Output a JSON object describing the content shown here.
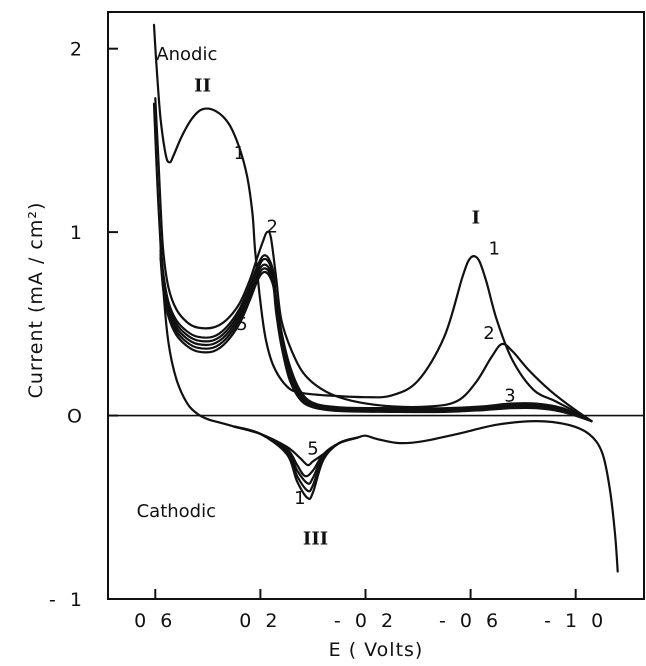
{
  "chart_data": {
    "type": "line",
    "xlabel": "E ( Volts)",
    "ylabel": "Current (mA / cm²)",
    "xlim": [
      0.78,
      -1.26
    ],
    "ylim": [
      -1.0,
      2.2
    ],
    "x_ticks": [
      {
        "value": 0.6,
        "label": "0 6"
      },
      {
        "value": 0.2,
        "label": "0 2"
      },
      {
        "value": -0.2,
        "label": "- 0 2"
      },
      {
        "value": -0.6,
        "label": "- 0 6"
      },
      {
        "value": -1.0,
        "label": "- 1 0"
      }
    ],
    "y_ticks": [
      {
        "value": 2,
        "label": "2"
      },
      {
        "value": 1,
        "label": "1"
      },
      {
        "value": 0,
        "label": "O"
      },
      {
        "value": -1,
        "label": "- 1"
      }
    ],
    "zero_line": true,
    "annotations": [
      {
        "text": "Anodic",
        "x": 0.48,
        "y": 1.97
      },
      {
        "text": "Cathodic",
        "x": 0.52,
        "y": -0.52
      },
      {
        "text": "II",
        "x": 0.42,
        "y": 1.8,
        "roman": true
      },
      {
        "text": "I",
        "x": -0.62,
        "y": 1.08,
        "roman": true
      },
      {
        "text": "III",
        "x": -0.01,
        "y": -0.67,
        "roman": true
      },
      {
        "text": "1",
        "x": 0.28,
        "y": 1.43
      },
      {
        "text": "2",
        "x": 0.155,
        "y": 1.03
      },
      {
        "text": "5",
        "x": 0.27,
        "y": 0.5
      },
      {
        "text": "1",
        "x": -0.69,
        "y": 0.91
      },
      {
        "text": "2",
        "x": -0.67,
        "y": 0.45
      },
      {
        "text": "3",
        "x": -0.75,
        "y": 0.11
      },
      {
        "text": "5",
        "x": 0.0,
        "y": -0.18
      },
      {
        "text": "1",
        "x": 0.05,
        "y": -0.45
      }
    ],
    "series": [
      {
        "values": [
          [
            0.605,
            2.13
          ],
          [
            0.595,
            1.9
          ],
          [
            0.58,
            1.62
          ],
          [
            0.56,
            1.42
          ],
          [
            0.545,
            1.38
          ],
          [
            0.53,
            1.42
          ],
          [
            0.5,
            1.52
          ],
          [
            0.46,
            1.62
          ],
          [
            0.42,
            1.67
          ],
          [
            0.37,
            1.66
          ],
          [
            0.32,
            1.59
          ],
          [
            0.28,
            1.46
          ],
          [
            0.25,
            1.3
          ],
          [
            0.23,
            1.1
          ],
          [
            0.22,
            0.9
          ],
          [
            0.2,
            0.62
          ],
          [
            0.18,
            0.42
          ],
          [
            0.15,
            0.27
          ],
          [
            0.1,
            0.16
          ],
          [
            0.05,
            0.125
          ],
          [
            -0.05,
            0.11
          ],
          [
            -0.2,
            0.1
          ],
          [
            -0.3,
            0.11
          ],
          [
            -0.4,
            0.19
          ],
          [
            -0.5,
            0.43
          ],
          [
            -0.57,
            0.76
          ],
          [
            -0.6,
            0.86
          ],
          [
            -0.63,
            0.85
          ],
          [
            -0.66,
            0.73
          ],
          [
            -0.7,
            0.52
          ],
          [
            -0.76,
            0.3
          ],
          [
            -0.84,
            0.14
          ],
          [
            -0.92,
            0.08
          ],
          [
            -1.0,
            0.02
          ],
          [
            -1.06,
            -0.03
          ]
        ]
      },
      {
        "values": [
          [
            0.6,
            1.73
          ],
          [
            0.59,
            1.45
          ],
          [
            0.58,
            1.15
          ],
          [
            0.57,
            0.9
          ],
          [
            0.55,
            0.7
          ],
          [
            0.52,
            0.58
          ],
          [
            0.48,
            0.51
          ],
          [
            0.44,
            0.48
          ],
          [
            0.38,
            0.48
          ],
          [
            0.33,
            0.52
          ],
          [
            0.28,
            0.61
          ],
          [
            0.24,
            0.74
          ],
          [
            0.21,
            0.87
          ],
          [
            0.19,
            0.95
          ],
          [
            0.175,
            1.0
          ],
          [
            0.16,
            0.97
          ],
          [
            0.14,
            0.75
          ],
          [
            0.12,
            0.52
          ],
          [
            0.08,
            0.35
          ],
          [
            0.03,
            0.22
          ],
          [
            -0.05,
            0.13
          ],
          [
            -0.15,
            0.08
          ],
          [
            -0.3,
            0.05
          ],
          [
            -0.45,
            0.05
          ],
          [
            -0.55,
            0.08
          ],
          [
            -0.62,
            0.18
          ],
          [
            -0.68,
            0.32
          ],
          [
            -0.72,
            0.39
          ],
          [
            -0.76,
            0.35
          ],
          [
            -0.82,
            0.25
          ],
          [
            -0.9,
            0.14
          ],
          [
            -0.98,
            0.05
          ],
          [
            -1.06,
            -0.03
          ]
        ]
      },
      {
        "values": [
          [
            0.58,
            0.95
          ],
          [
            0.57,
            0.78
          ],
          [
            0.55,
            0.62
          ],
          [
            0.52,
            0.52
          ],
          [
            0.48,
            0.46
          ],
          [
            0.44,
            0.43
          ],
          [
            0.38,
            0.43
          ],
          [
            0.33,
            0.48
          ],
          [
            0.28,
            0.58
          ],
          [
            0.24,
            0.71
          ],
          [
            0.21,
            0.82
          ],
          [
            0.19,
            0.87
          ],
          [
            0.17,
            0.86
          ],
          [
            0.15,
            0.78
          ],
          [
            0.14,
            0.64
          ],
          [
            0.12,
            0.46
          ],
          [
            0.09,
            0.28
          ],
          [
            0.05,
            0.14
          ],
          [
            0.0,
            0.07
          ],
          [
            -0.1,
            0.045
          ],
          [
            -0.3,
            0.04
          ],
          [
            -0.5,
            0.04
          ],
          [
            -0.65,
            0.05
          ],
          [
            -0.75,
            0.065
          ],
          [
            -0.85,
            0.065
          ],
          [
            -0.95,
            0.04
          ],
          [
            -1.06,
            -0.03
          ]
        ]
      },
      {
        "values": [
          [
            0.58,
            0.93
          ],
          [
            0.57,
            0.76
          ],
          [
            0.55,
            0.6
          ],
          [
            0.52,
            0.5
          ],
          [
            0.48,
            0.44
          ],
          [
            0.44,
            0.41
          ],
          [
            0.38,
            0.41
          ],
          [
            0.33,
            0.46
          ],
          [
            0.28,
            0.56
          ],
          [
            0.24,
            0.69
          ],
          [
            0.21,
            0.8
          ],
          [
            0.19,
            0.85
          ],
          [
            0.17,
            0.84
          ],
          [
            0.15,
            0.76
          ],
          [
            0.14,
            0.62
          ],
          [
            0.12,
            0.44
          ],
          [
            0.09,
            0.26
          ],
          [
            0.05,
            0.12
          ],
          [
            0.0,
            0.06
          ],
          [
            -0.1,
            0.04
          ],
          [
            -0.3,
            0.035
          ],
          [
            -0.5,
            0.035
          ],
          [
            -0.65,
            0.045
          ],
          [
            -0.75,
            0.058
          ],
          [
            -0.85,
            0.058
          ],
          [
            -0.95,
            0.035
          ],
          [
            -1.06,
            -0.03
          ]
        ]
      },
      {
        "values": [
          [
            0.58,
            0.9
          ],
          [
            0.57,
            0.73
          ],
          [
            0.55,
            0.58
          ],
          [
            0.52,
            0.48
          ],
          [
            0.48,
            0.42
          ],
          [
            0.44,
            0.39
          ],
          [
            0.38,
            0.39
          ],
          [
            0.33,
            0.44
          ],
          [
            0.28,
            0.54
          ],
          [
            0.24,
            0.67
          ],
          [
            0.21,
            0.78
          ],
          [
            0.19,
            0.82
          ],
          [
            0.17,
            0.81
          ],
          [
            0.15,
            0.74
          ],
          [
            0.14,
            0.6
          ],
          [
            0.12,
            0.42
          ],
          [
            0.09,
            0.24
          ],
          [
            0.05,
            0.11
          ],
          [
            0.0,
            0.055
          ],
          [
            -0.1,
            0.035
          ],
          [
            -0.3,
            0.03
          ],
          [
            -0.5,
            0.03
          ],
          [
            -0.65,
            0.04
          ],
          [
            -0.75,
            0.052
          ],
          [
            -0.85,
            0.052
          ],
          [
            -0.95,
            0.03
          ],
          [
            -1.06,
            -0.03
          ]
        ]
      },
      {
        "values": [
          [
            0.58,
            0.88
          ],
          [
            0.57,
            0.71
          ],
          [
            0.55,
            0.56
          ],
          [
            0.52,
            0.46
          ],
          [
            0.48,
            0.4
          ],
          [
            0.44,
            0.37
          ],
          [
            0.38,
            0.37
          ],
          [
            0.33,
            0.42
          ],
          [
            0.28,
            0.52
          ],
          [
            0.24,
            0.65
          ],
          [
            0.21,
            0.76
          ],
          [
            0.19,
            0.8
          ],
          [
            0.17,
            0.79
          ],
          [
            0.15,
            0.72
          ],
          [
            0.14,
            0.58
          ],
          [
            0.12,
            0.4
          ],
          [
            0.09,
            0.22
          ],
          [
            0.05,
            0.1
          ],
          [
            0.0,
            0.05
          ],
          [
            -0.1,
            0.03
          ],
          [
            -0.3,
            0.025
          ],
          [
            -0.5,
            0.025
          ],
          [
            -0.65,
            0.035
          ],
          [
            -0.75,
            0.046
          ],
          [
            -0.85,
            0.046
          ],
          [
            -0.95,
            0.025
          ],
          [
            -1.06,
            -0.03
          ]
        ]
      },
      {
        "values": [
          [
            0.58,
            0.86
          ],
          [
            0.57,
            0.69
          ],
          [
            0.55,
            0.54
          ],
          [
            0.52,
            0.44
          ],
          [
            0.48,
            0.38
          ],
          [
            0.44,
            0.35
          ],
          [
            0.38,
            0.35
          ],
          [
            0.33,
            0.4
          ],
          [
            0.28,
            0.5
          ],
          [
            0.24,
            0.63
          ],
          [
            0.21,
            0.74
          ],
          [
            0.19,
            0.78
          ],
          [
            0.17,
            0.77
          ],
          [
            0.15,
            0.7
          ],
          [
            0.14,
            0.56
          ],
          [
            0.12,
            0.38
          ],
          [
            0.09,
            0.2
          ],
          [
            0.05,
            0.09
          ],
          [
            0.0,
            0.045
          ],
          [
            -0.1,
            0.025
          ],
          [
            -0.3,
            0.02
          ],
          [
            -0.5,
            0.02
          ],
          [
            -0.65,
            0.03
          ],
          [
            -0.75,
            0.04
          ],
          [
            -0.85,
            0.04
          ],
          [
            -0.95,
            0.02
          ],
          [
            -1.06,
            -0.03
          ]
        ]
      },
      {
        "values": [
          [
            0.605,
            1.7
          ],
          [
            0.59,
            1.2
          ],
          [
            0.57,
            0.7
          ],
          [
            0.55,
            0.4
          ],
          [
            0.52,
            0.2
          ],
          [
            0.48,
            0.07
          ],
          [
            0.44,
            0.01
          ],
          [
            0.4,
            -0.02
          ],
          [
            0.35,
            -0.04
          ],
          [
            0.3,
            -0.06
          ],
          [
            0.2,
            -0.1
          ],
          [
            0.1,
            -0.17
          ],
          [
            0.05,
            -0.23
          ],
          [
            0.02,
            -0.27
          ],
          [
            0.0,
            -0.25
          ],
          [
            -0.05,
            -0.2
          ],
          [
            -0.1,
            -0.15
          ],
          [
            -0.17,
            -0.12
          ],
          [
            -0.2,
            -0.11
          ],
          [
            -0.25,
            -0.13
          ],
          [
            -0.33,
            -0.15
          ],
          [
            -0.42,
            -0.14
          ],
          [
            -0.55,
            -0.1
          ],
          [
            -0.7,
            -0.05
          ],
          [
            -0.85,
            -0.03
          ],
          [
            -0.97,
            -0.05
          ],
          [
            -1.05,
            -0.1
          ],
          [
            -1.1,
            -0.2
          ],
          [
            -1.13,
            -0.4
          ],
          [
            -1.15,
            -0.65
          ],
          [
            -1.16,
            -0.85
          ]
        ]
      },
      {
        "values": [
          [
            0.3,
            -0.06
          ],
          [
            0.2,
            -0.1
          ],
          [
            0.1,
            -0.18
          ],
          [
            0.06,
            -0.27
          ],
          [
            0.03,
            -0.33
          ],
          [
            0.0,
            -0.3
          ],
          [
            -0.04,
            -0.21
          ],
          [
            -0.1,
            -0.15
          ],
          [
            -0.17,
            -0.12
          ]
        ]
      },
      {
        "values": [
          [
            0.3,
            -0.06
          ],
          [
            0.2,
            -0.1
          ],
          [
            0.1,
            -0.19
          ],
          [
            0.06,
            -0.3
          ],
          [
            0.02,
            -0.37
          ],
          [
            0.0,
            -0.34
          ],
          [
            -0.04,
            -0.22
          ],
          [
            -0.1,
            -0.15
          ],
          [
            -0.17,
            -0.12
          ]
        ]
      },
      {
        "values": [
          [
            0.3,
            -0.06
          ],
          [
            0.2,
            -0.1
          ],
          [
            0.1,
            -0.2
          ],
          [
            0.06,
            -0.33
          ],
          [
            0.02,
            -0.41
          ],
          [
            0.0,
            -0.38
          ],
          [
            -0.04,
            -0.23
          ],
          [
            -0.1,
            -0.15
          ],
          [
            -0.17,
            -0.12
          ]
        ]
      },
      {
        "values": [
          [
            0.3,
            -0.06
          ],
          [
            0.2,
            -0.1
          ],
          [
            0.1,
            -0.21
          ],
          [
            0.06,
            -0.36
          ],
          [
            0.02,
            -0.45
          ],
          [
            0.0,
            -0.42
          ],
          [
            -0.04,
            -0.24
          ],
          [
            -0.1,
            -0.15
          ],
          [
            -0.17,
            -0.12
          ]
        ]
      }
    ]
  }
}
